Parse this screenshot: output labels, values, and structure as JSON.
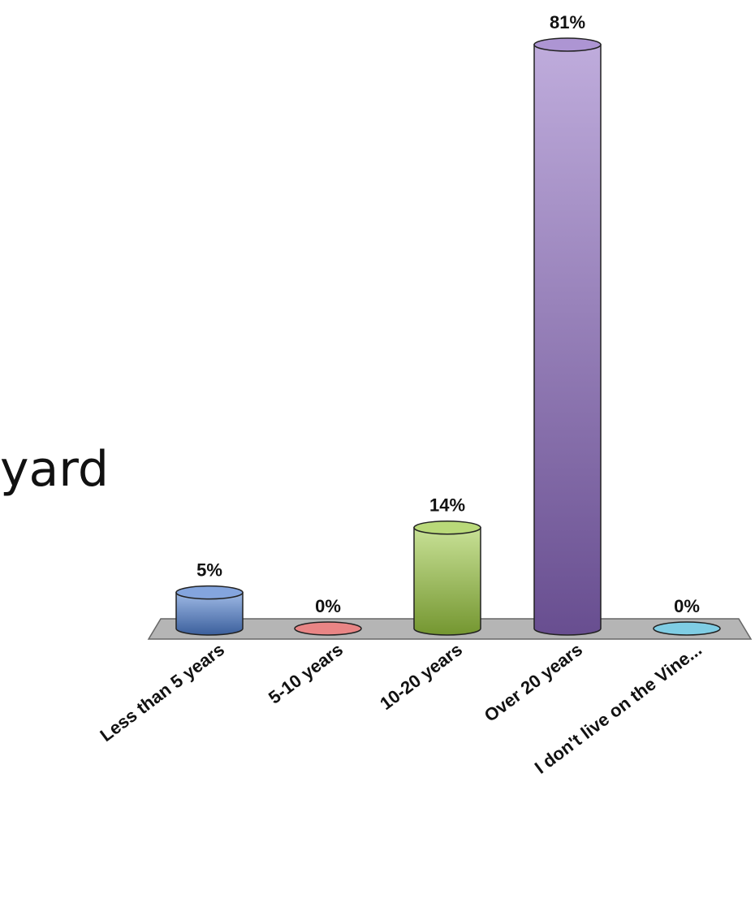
{
  "fragment_text": "yard",
  "chart_data": {
    "type": "bar",
    "categories": [
      "Less than 5 years",
      "5-10 years",
      "10-20 years",
      "Over 20 years",
      "I don't live on the Vine..."
    ],
    "values": [
      5,
      0,
      14,
      81,
      0
    ],
    "value_labels": [
      "5%",
      "0%",
      "14%",
      "81%",
      "0%"
    ],
    "unit": "%",
    "ylim": [
      0,
      81
    ],
    "grid": false,
    "legend": "none",
    "colors": [
      "#4f7fd0",
      "#e05050",
      "#9bc840",
      "#8a68c0",
      "#48b8d8"
    ]
  }
}
